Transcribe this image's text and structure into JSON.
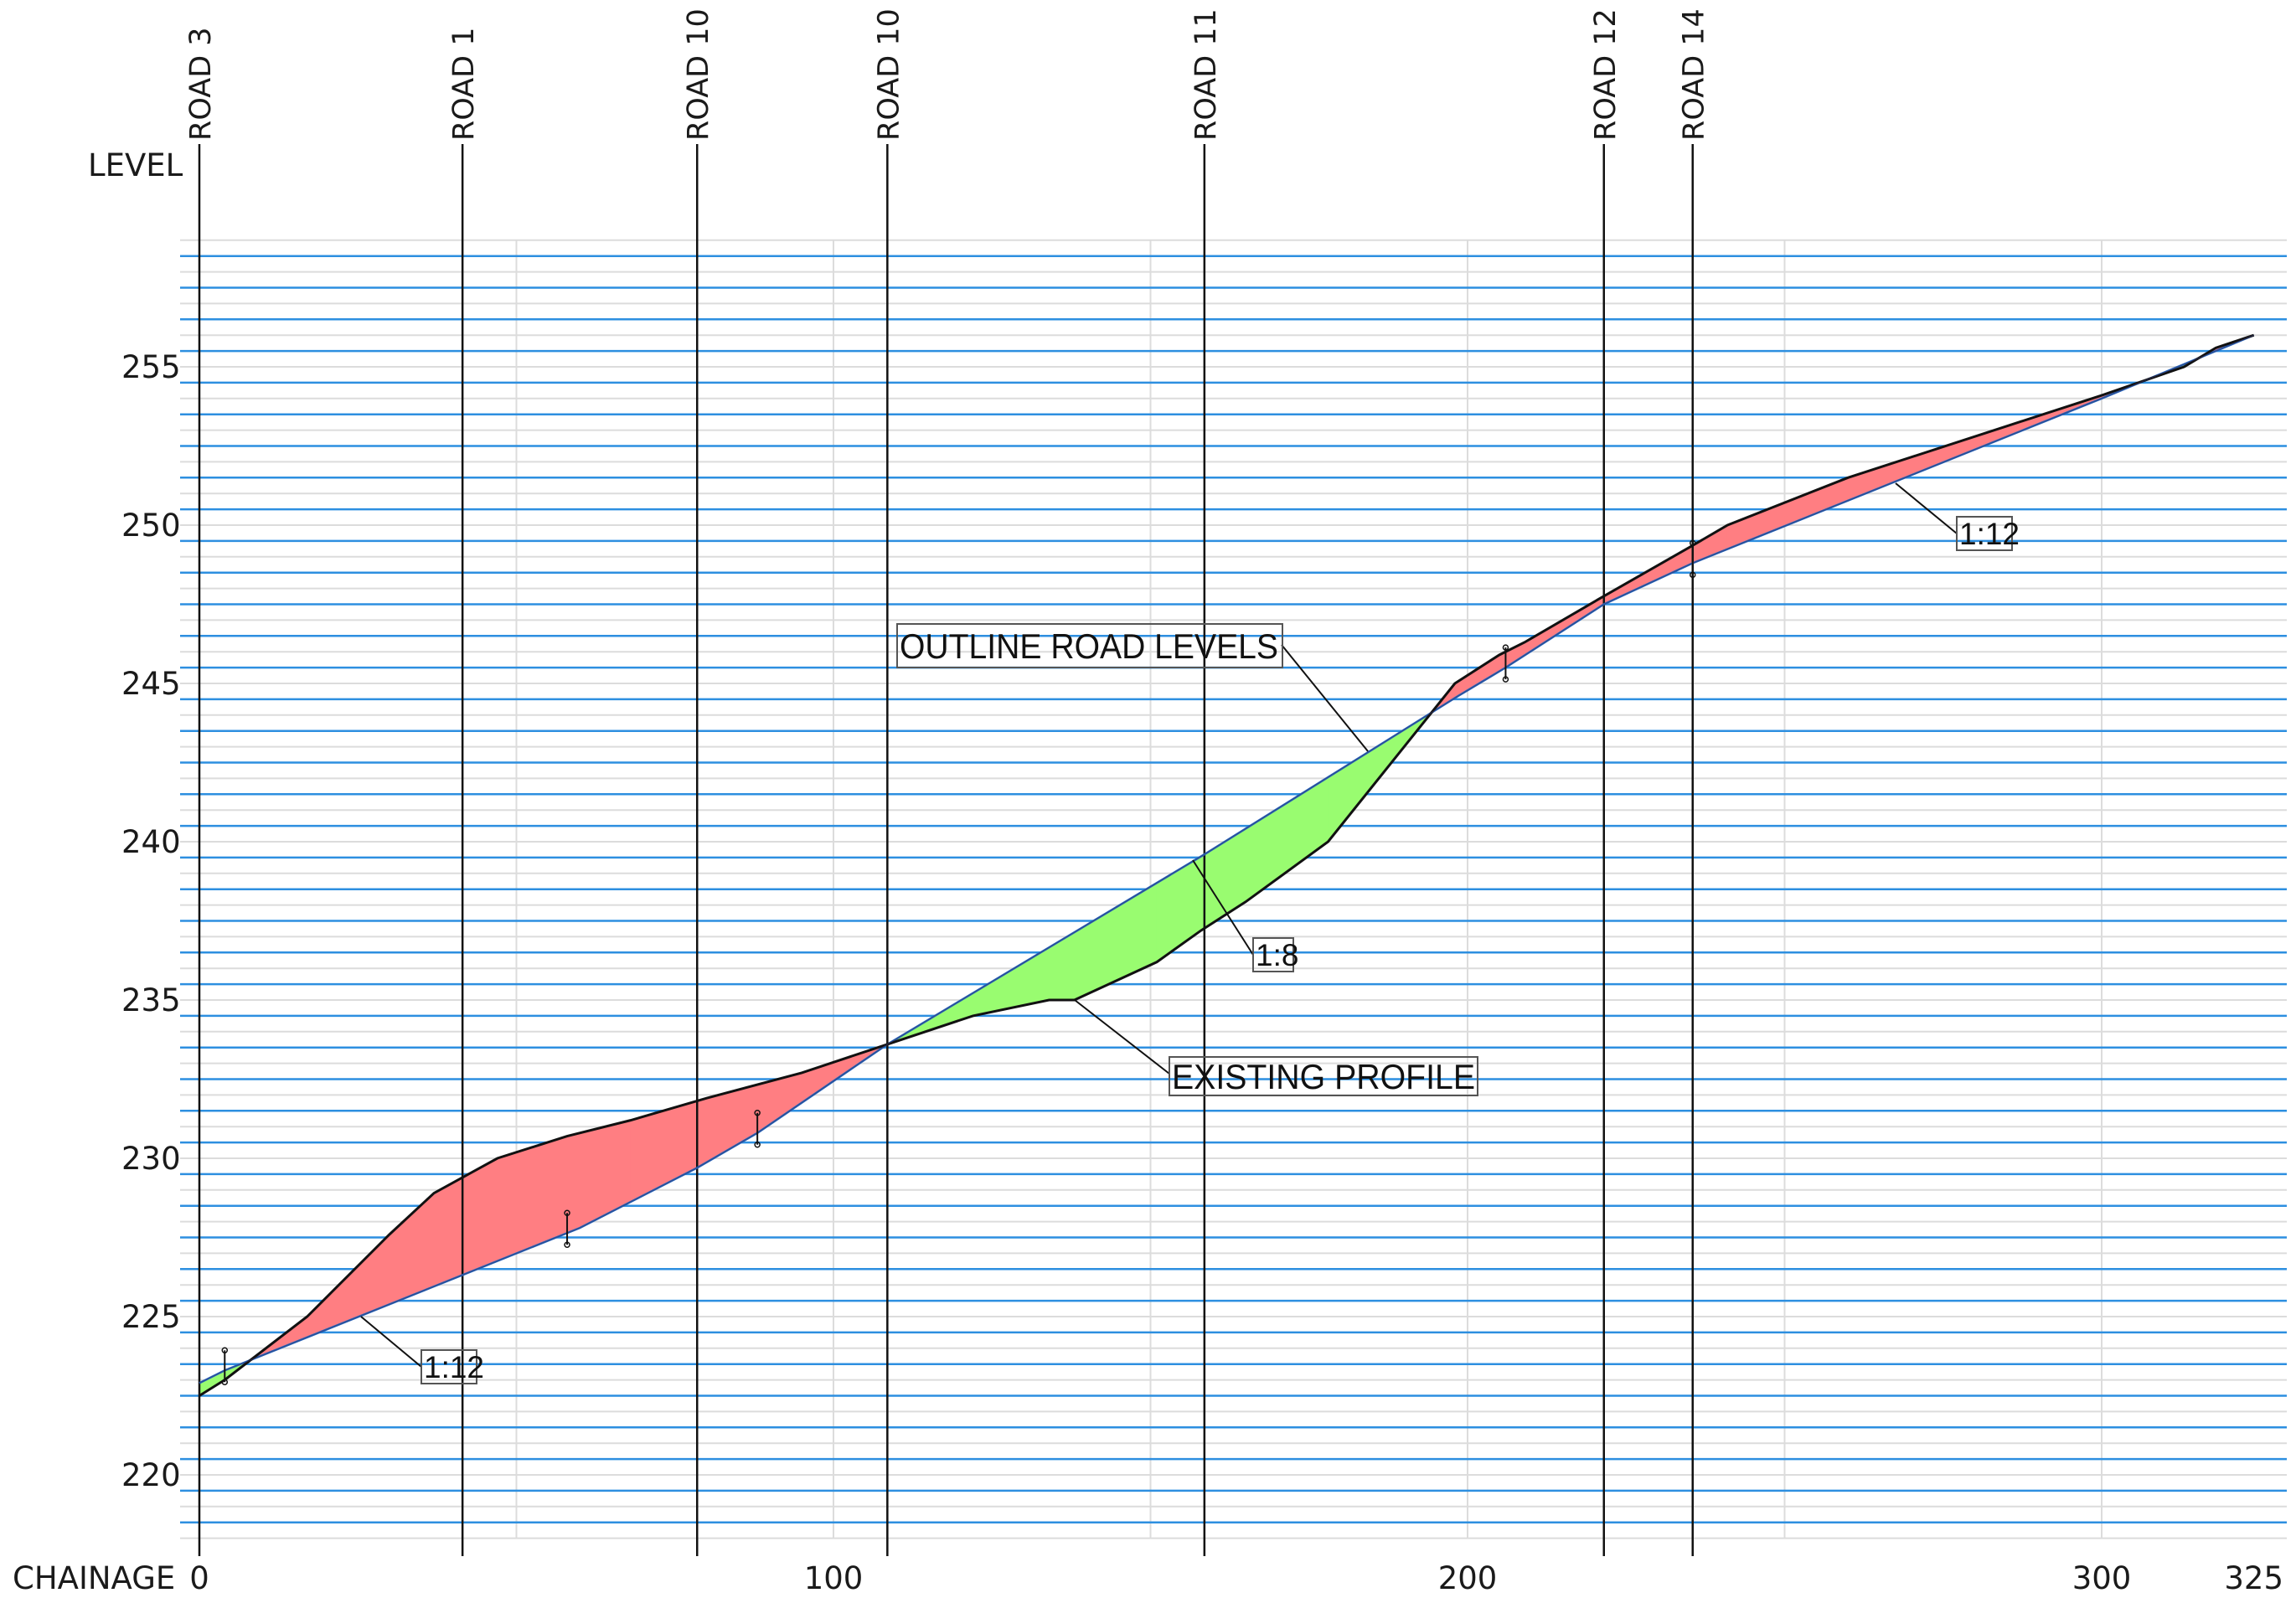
{
  "chart_data": {
    "type": "area",
    "xlabel": "CHAINAGE",
    "ylabel": "LEVEL",
    "xlim": [
      0,
      325
    ],
    "ylim": [
      218,
      259
    ],
    "x_ticks": [
      {
        "value": 0,
        "label": "0"
      },
      {
        "value": 100,
        "label": "100"
      },
      {
        "value": 200,
        "label": "200"
      },
      {
        "value": 300,
        "label": "300"
      },
      {
        "value": 324,
        "label": "325"
      }
    ],
    "y_ticks": [
      220,
      225,
      230,
      235,
      240,
      245,
      250,
      255
    ],
    "road_crossings": [
      {
        "label": "ROAD 3",
        "x": 0
      },
      {
        "label": "ROAD 1",
        "x": 41.5
      },
      {
        "label": "ROAD 10",
        "x": 78.5
      },
      {
        "label": "ROAD 10",
        "x": 108.5
      },
      {
        "label": "ROAD 11",
        "x": 158.5
      },
      {
        "label": "ROAD 12",
        "x": 221.5
      },
      {
        "label": "ROAD 14",
        "x": 235.5
      }
    ],
    "series": [
      {
        "name": "OUTLINE ROAD LEVELS",
        "color": "#2166c2",
        "points": [
          [
            0,
            222.9
          ],
          [
            4,
            223.3
          ],
          [
            60,
            227.8
          ],
          [
            78.5,
            229.7
          ],
          [
            88,
            230.8
          ],
          [
            108.5,
            233.6
          ],
          [
            158.5,
            239.6
          ],
          [
            198.5,
            244.6
          ],
          [
            206,
            245.5
          ],
          [
            221.5,
            247.5
          ],
          [
            235.5,
            248.8
          ],
          [
            300,
            254.0
          ],
          [
            324,
            256.0
          ]
        ]
      },
      {
        "name": "EXISTING PROFILE",
        "color": "#111111",
        "points": [
          [
            0,
            222.5
          ],
          [
            4,
            223.0
          ],
          [
            17,
            225.0
          ],
          [
            22,
            226.0
          ],
          [
            30,
            227.6
          ],
          [
            37,
            228.9
          ],
          [
            47,
            230.0
          ],
          [
            58,
            230.7
          ],
          [
            68,
            231.2
          ],
          [
            80,
            231.9
          ],
          [
            95,
            232.7
          ],
          [
            108.5,
            233.6
          ],
          [
            122,
            234.5
          ],
          [
            134,
            235.0
          ],
          [
            138,
            235.0
          ],
          [
            151,
            236.2
          ],
          [
            158,
            237.2
          ],
          [
            165,
            238.1
          ],
          [
            178,
            240.0
          ],
          [
            198,
            245.0
          ],
          [
            205,
            245.9
          ],
          [
            209,
            246.3
          ],
          [
            221,
            247.7
          ],
          [
            235,
            249.3
          ],
          [
            241,
            250.0
          ],
          [
            260,
            251.5
          ],
          [
            300,
            254.1
          ],
          [
            313,
            255.0
          ],
          [
            318,
            255.6
          ],
          [
            324,
            256.0
          ]
        ]
      }
    ],
    "fill_colors": {
      "cut": "#ff7e82",
      "fill": "#99fc70"
    },
    "annotations": {
      "outline": "OUTLINE ROAD LEVELS",
      "existing": "EXISTING PROFILE",
      "grade_left": "1:12",
      "grade_middle": "1:8",
      "grade_right": "1:12"
    },
    "grid": true
  }
}
